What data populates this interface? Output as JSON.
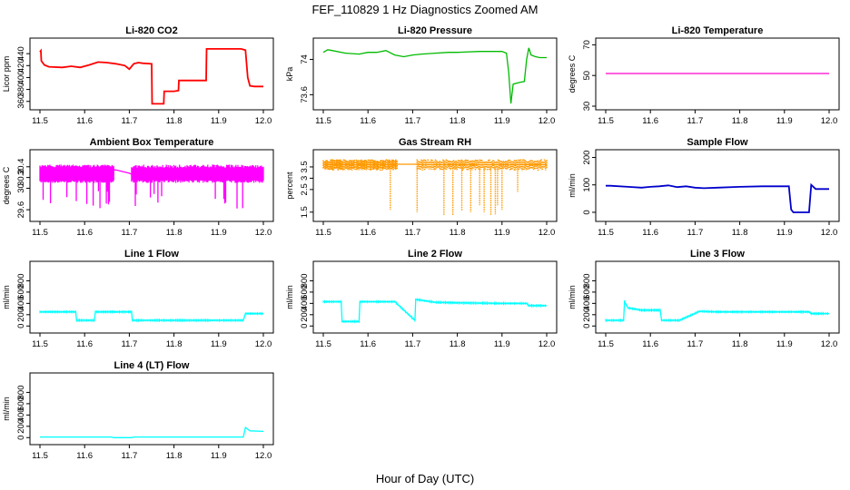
{
  "figure": {
    "title": "FEF_110829 1 Hz Diagnostics Zoomed AM",
    "xlabel": "Hour of Day (UTC)"
  },
  "chart_data": [
    {
      "id": "co2",
      "type": "line",
      "title": "Li-820 CO2",
      "ylabel": "Licor ppm",
      "color": "#ff0000",
      "xlim": [
        11.5,
        12.0
      ],
      "ylim": [
        352,
        460
      ],
      "yticks": [
        360,
        380,
        400,
        420,
        440
      ],
      "xticks": [
        11.5,
        11.6,
        11.7,
        11.8,
        11.9,
        12.0
      ],
      "series": [
        {
          "name": "CO2",
          "x": [
            11.5,
            11.502,
            11.503,
            11.51,
            11.52,
            11.55,
            11.57,
            11.59,
            11.61,
            11.63,
            11.65,
            11.67,
            11.69,
            11.7,
            11.71,
            11.72,
            11.73,
            11.75,
            11.751,
            11.76,
            11.777,
            11.778,
            11.8,
            11.81,
            11.811,
            11.86,
            11.872,
            11.873,
            11.95,
            11.96,
            11.965,
            11.97,
            11.98,
            12.0
          ],
          "values": [
            443,
            445,
            428,
            421,
            418,
            417,
            419,
            417,
            421,
            426,
            425,
            423,
            420,
            414,
            423,
            425,
            424,
            423,
            356,
            356,
            356,
            377,
            377,
            378,
            395,
            395,
            395,
            448,
            448,
            446,
            400,
            386,
            385,
            385
          ]
        }
      ]
    },
    {
      "id": "pressure",
      "type": "line",
      "title": "Li-820 Pressure",
      "ylabel": "kPa",
      "color": "#00bb00",
      "xlim": [
        11.5,
        12.0
      ],
      "ylim": [
        73.47,
        74.2
      ],
      "yticks": [
        73.6,
        74.0
      ],
      "xticks": [
        11.5,
        11.6,
        11.7,
        11.8,
        11.9,
        12.0
      ],
      "series": [
        {
          "name": "Pressure",
          "x": [
            11.5,
            11.51,
            11.52,
            11.55,
            11.58,
            11.6,
            11.62,
            11.64,
            11.66,
            11.68,
            11.7,
            11.72,
            11.75,
            11.78,
            11.8,
            11.85,
            11.9,
            11.91,
            11.915,
            11.92,
            11.925,
            11.94,
            11.95,
            11.955,
            11.96,
            11.965,
            11.975,
            11.985,
            12.0
          ],
          "values": [
            74.08,
            74.11,
            74.1,
            74.07,
            74.06,
            74.08,
            74.08,
            74.1,
            74.05,
            74.03,
            74.05,
            74.06,
            74.07,
            74.08,
            74.08,
            74.09,
            74.09,
            74.07,
            73.85,
            73.5,
            73.72,
            73.74,
            73.75,
            74.0,
            74.13,
            74.05,
            74.03,
            74.02,
            74.02
          ]
        }
      ]
    },
    {
      "id": "temperature",
      "type": "line",
      "title": "Li-820 Temperature",
      "ylabel": "degrees C",
      "color": "#ff00cc",
      "xlim": [
        11.5,
        12.0
      ],
      "ylim": [
        30,
        72
      ],
      "yticks": [
        30,
        50,
        70
      ],
      "xticks": [
        11.5,
        11.6,
        11.7,
        11.8,
        11.9,
        12.0
      ],
      "series": [
        {
          "name": "Temperature",
          "x": [
            11.5,
            12.0
          ],
          "values": [
            51.3,
            51.3
          ]
        }
      ]
    },
    {
      "id": "ambient",
      "type": "line",
      "title": "Ambient Box Temperature",
      "ylabel": "degrees C",
      "color": "#ff00ff",
      "xlim": [
        11.5,
        12.0
      ],
      "ylim": [
        29.45,
        30.65
      ],
      "yticks": [
        29.6,
        30.0,
        30.2,
        30.4
      ],
      "xticks": [
        11.5,
        11.6,
        11.7,
        11.8,
        11.9,
        12.0
      ],
      "series": [
        {
          "name": "Ambient",
          "x": [
            11.5,
            11.66,
            11.665,
            11.67,
            11.7,
            11.705,
            11.71,
            12.0
          ],
          "values": [
            30.22,
            30.22,
            30.34,
            30.34,
            30.28,
            30.26,
            30.22,
            30.22
          ]
        }
      ],
      "band": {
        "x0": [
          11.5,
          11.705
        ],
        "x1": [
          11.665,
          12.0
        ],
        "low": 30.1,
        "high": 30.44,
        "min_spike": 29.62
      }
    },
    {
      "id": "rh",
      "type": "line",
      "title": "Gas Stream RH",
      "ylabel": "percent",
      "color": "#ff9900",
      "xlim": [
        11.5,
        12.0
      ],
      "ylim": [
        1.25,
        4.1
      ],
      "yticks": [
        1.5,
        2.5,
        3.0,
        3.5
      ],
      "xticks": [
        11.5,
        11.6,
        11.7,
        11.8,
        11.9,
        12.0
      ],
      "series": [
        {
          "name": "RH",
          "x": [
            11.5,
            11.66,
            11.665,
            11.71,
            11.715,
            12.0
          ],
          "values": [
            3.6,
            3.6,
            3.62,
            3.62,
            3.6,
            3.6
          ]
        }
      ],
      "dips": [
        [
          11.65,
          1.6
        ],
        [
          11.71,
          1.5
        ],
        [
          11.77,
          1.35
        ],
        [
          11.79,
          1.35
        ],
        [
          11.81,
          1.55
        ],
        [
          11.83,
          1.5
        ],
        [
          11.85,
          1.8
        ],
        [
          11.86,
          1.5
        ],
        [
          11.875,
          1.35
        ],
        [
          11.885,
          1.4
        ],
        [
          11.89,
          1.8
        ],
        [
          11.9,
          1.6
        ],
        [
          11.935,
          2.4
        ]
      ]
    },
    {
      "id": "sample_flow",
      "type": "line",
      "title": "Sample Flow",
      "ylabel": "ml/min",
      "color": "#0000cc",
      "xlim": [
        11.5,
        12.0
      ],
      "ylim": [
        -20,
        215
      ],
      "yticks": [
        0,
        100,
        200
      ],
      "xticks": [
        11.5,
        11.6,
        11.7,
        11.8,
        11.9,
        12.0
      ],
      "series": [
        {
          "name": "Sample Flow",
          "x": [
            11.5,
            11.51,
            11.55,
            11.58,
            11.6,
            11.62,
            11.64,
            11.66,
            11.68,
            11.7,
            11.72,
            11.75,
            11.8,
            11.85,
            11.9,
            11.91,
            11.915,
            11.92,
            11.955,
            11.96,
            11.97,
            12.0
          ],
          "values": [
            97,
            97,
            93,
            90,
            93,
            95,
            98,
            92,
            95,
            90,
            88,
            90,
            93,
            95,
            95,
            95,
            10,
            0,
            0,
            100,
            85,
            85
          ]
        }
      ]
    },
    {
      "id": "line1",
      "type": "line",
      "title": "Line 1 Flow",
      "ylabel": "ml/min",
      "color": "#00ffff",
      "xlim": [
        11.5,
        12.0
      ],
      "ylim": [
        -60,
        1080
      ],
      "yticks": [
        0,
        200,
        400,
        600,
        800
      ],
      "xticks": [
        11.5,
        11.6,
        11.7,
        11.8,
        11.9,
        12.0
      ],
      "series": [
        {
          "name": "Line 1",
          "x": [
            11.5,
            11.58,
            11.582,
            11.622,
            11.624,
            11.705,
            11.707,
            11.955,
            11.96,
            12.0
          ],
          "values": [
            250,
            250,
            100,
            100,
            250,
            250,
            100,
            100,
            220,
            220
          ]
        }
      ]
    },
    {
      "id": "line2",
      "type": "line",
      "title": "Line 2 Flow",
      "ylabel": "ml/min",
      "color": "#00ffff",
      "xlim": [
        11.5,
        12.0
      ],
      "ylim": [
        -60,
        1080
      ],
      "yticks": [
        0,
        200,
        400,
        600,
        800
      ],
      "xticks": [
        11.5,
        11.6,
        11.7,
        11.8,
        11.9,
        12.0
      ],
      "series": [
        {
          "name": "Line 2",
          "x": [
            11.5,
            11.54,
            11.542,
            11.58,
            11.582,
            11.66,
            11.705,
            11.707,
            11.75,
            11.8,
            11.9,
            11.955,
            11.96,
            12.0
          ],
          "values": [
            430,
            430,
            80,
            80,
            430,
            430,
            100,
            470,
            420,
            410,
            400,
            400,
            360,
            360
          ]
        }
      ]
    },
    {
      "id": "line3",
      "type": "line",
      "title": "Line 3 Flow",
      "ylabel": "ml/min",
      "color": "#00ffff",
      "xlim": [
        11.5,
        12.0
      ],
      "ylim": [
        -60,
        1080
      ],
      "yticks": [
        0,
        200,
        400,
        600,
        800
      ],
      "xticks": [
        11.5,
        11.6,
        11.7,
        11.8,
        11.9,
        12.0
      ],
      "series": [
        {
          "name": "Line 3",
          "x": [
            11.5,
            11.54,
            11.542,
            11.55,
            11.58,
            11.622,
            11.625,
            11.665,
            11.71,
            11.75,
            11.85,
            11.955,
            11.96,
            12.0
          ],
          "values": [
            100,
            100,
            430,
            320,
            280,
            280,
            100,
            100,
            260,
            250,
            250,
            250,
            220,
            220
          ]
        }
      ]
    },
    {
      "id": "line4",
      "type": "line",
      "title": "Line 4 (LT) Flow",
      "ylabel": "ml/min",
      "color": "#00ffff",
      "xlim": [
        11.5,
        12.0
      ],
      "ylim": [
        -60,
        1080
      ],
      "yticks": [
        0,
        200,
        400,
        600,
        800
      ],
      "xticks": [
        11.5,
        11.6,
        11.7,
        11.8,
        11.9,
        12.0
      ],
      "series": [
        {
          "name": "Line 4",
          "x": [
            11.5,
            11.66,
            11.665,
            11.705,
            11.71,
            11.955,
            11.96,
            11.97,
            12.0
          ],
          "values": [
            10,
            10,
            0,
            0,
            10,
            10,
            180,
            120,
            110
          ]
        }
      ]
    }
  ]
}
